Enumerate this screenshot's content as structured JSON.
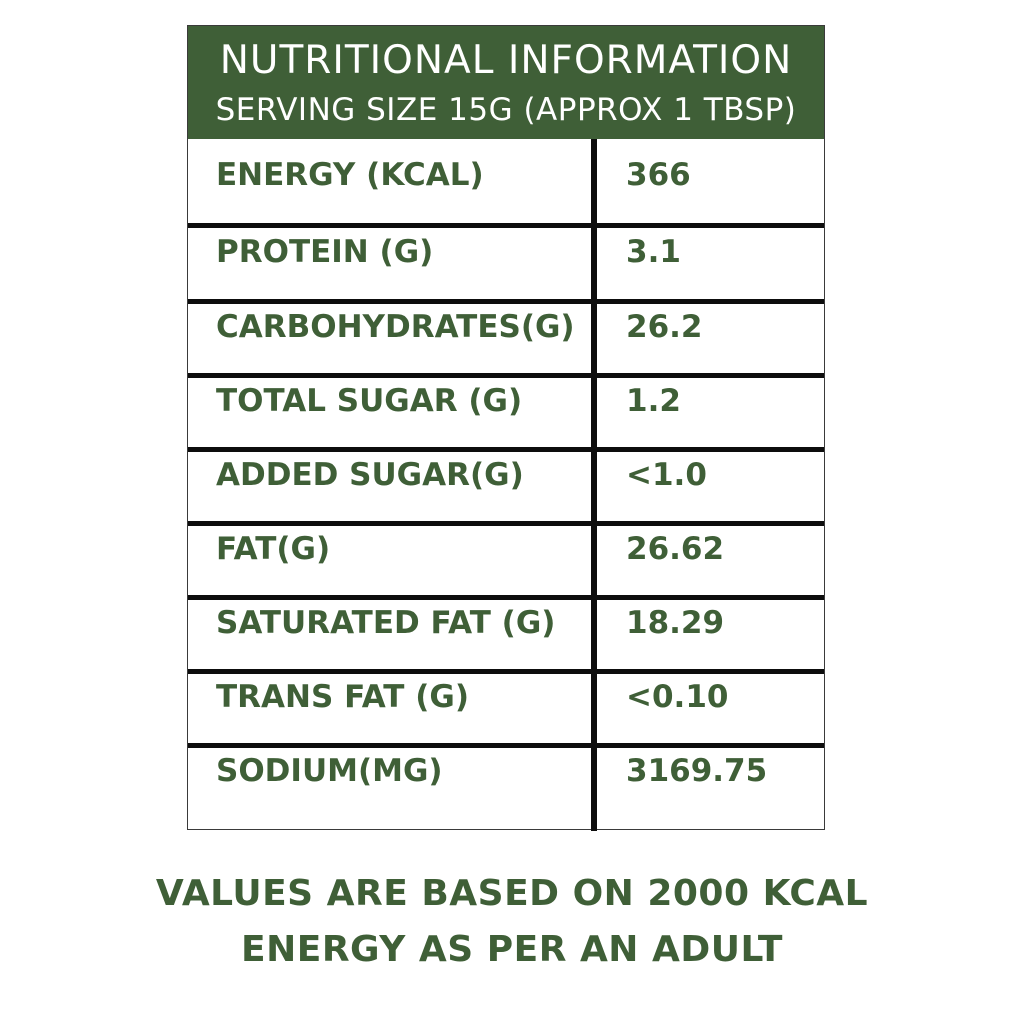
{
  "header": {
    "title": "NUTRITIONAL INFORMATION",
    "subtitle": "SERVING SIZE 15G (APPROX 1 TBSP)"
  },
  "rows": [
    {
      "label": "ENERGY (KCAL)",
      "value": "366"
    },
    {
      "label": "PROTEIN (G)",
      "value": "3.1"
    },
    {
      "label": "CARBOHYDRATES(G)",
      "value": "26.2"
    },
    {
      "label": "TOTAL SUGAR (G)",
      "value": "1.2"
    },
    {
      "label": "ADDED SUGAR(G)",
      "value": "<1.0"
    },
    {
      "label": "FAT(G)",
      "value": "26.62"
    },
    {
      "label": "SATURATED FAT (G)",
      "value": "18.29"
    },
    {
      "label": "TRANS FAT (G)",
      "value": "<0.10"
    },
    {
      "label": "SODIUM(MG)",
      "value": "3169.75"
    }
  ],
  "footer": {
    "line1": "VALUES ARE BASED ON 2000 KCAL",
    "line2": "ENERGY AS PER AN ADULT"
  },
  "colors": {
    "brand_green": "#3f5f37",
    "rule": "#0d0d0d",
    "background": "#ffffff"
  }
}
